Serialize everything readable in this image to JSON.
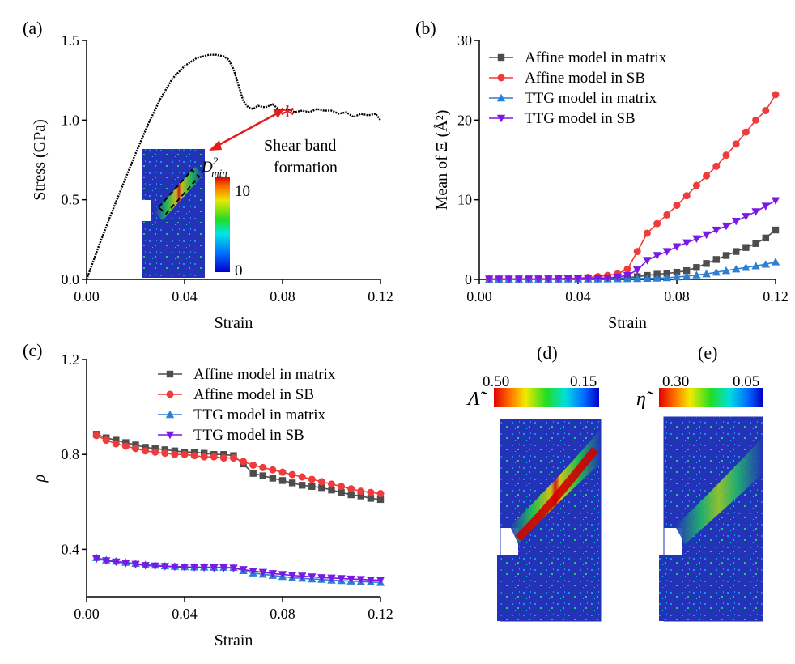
{
  "colors": {
    "affine_matrix": "#4d4d4d",
    "affine_sb": "#ef3b3b",
    "ttg_matrix": "#2d7fd3",
    "ttg_sb": "#7a19e6",
    "stress_curve": "#000000",
    "annotation_arrow": "#e21b1b",
    "sample_background": "#2233b8"
  },
  "panels": {
    "a": {
      "label": "(a)"
    },
    "b": {
      "label": "(b)"
    },
    "c": {
      "label": "(c)"
    },
    "d": {
      "label": "(d)"
    },
    "e": {
      "label": "(e)"
    }
  },
  "annotation": {
    "text_line1": "Shear band",
    "text_line2": "formation",
    "star_glyph": "*"
  },
  "inset_a": {
    "colorbar_title_main": "D",
    "colorbar_title_sup": "2",
    "colorbar_title_sub": "min",
    "colorbar_max": "10",
    "colorbar_min": "0"
  },
  "map_d": {
    "symbol": "Λ̃",
    "left_value": "0.50",
    "right_value": "0.15"
  },
  "map_e": {
    "symbol": "η̃",
    "left_value": "0.30",
    "right_value": "0.05"
  },
  "chart_data": [
    {
      "id": "a",
      "type": "line",
      "xlabel": "Strain",
      "ylabel": "Stress (GPa)",
      "xlim": [
        0.0,
        0.12
      ],
      "ylim": [
        0.0,
        1.5
      ],
      "xticks": [
        "0.00",
        "0.04",
        "0.08",
        "0.12"
      ],
      "yticks": [
        "0.0",
        "0.5",
        "1.0",
        "1.5"
      ],
      "xtick_values": [
        0.0,
        0.04,
        0.08,
        0.12
      ],
      "ytick_values": [
        0.0,
        0.5,
        1.0,
        1.5
      ],
      "series": [
        {
          "color": "#000000",
          "x": [
            0.0,
            0.005,
            0.01,
            0.015,
            0.02,
            0.025,
            0.03,
            0.035,
            0.04,
            0.045,
            0.05,
            0.053,
            0.056,
            0.058,
            0.06,
            0.062,
            0.064,
            0.066,
            0.068,
            0.07,
            0.073,
            0.076,
            0.079,
            0.082,
            0.085,
            0.088,
            0.091,
            0.094,
            0.097,
            0.1,
            0.103,
            0.106,
            0.109,
            0.112,
            0.115,
            0.118,
            0.12
          ],
          "y": [
            0.0,
            0.21,
            0.41,
            0.6,
            0.79,
            0.97,
            1.13,
            1.26,
            1.34,
            1.39,
            1.41,
            1.41,
            1.4,
            1.38,
            1.32,
            1.22,
            1.12,
            1.08,
            1.07,
            1.09,
            1.08,
            1.1,
            1.06,
            1.07,
            1.05,
            1.06,
            1.05,
            1.07,
            1.06,
            1.06,
            1.04,
            1.05,
            1.02,
            1.04,
            1.03,
            1.04,
            1.0
          ]
        }
      ],
      "annotation_point": {
        "x": 0.082,
        "y": 1.07
      }
    },
    {
      "id": "b",
      "type": "line",
      "xlabel": "Strain",
      "ylabel": "Mean of Ξ (Å²)",
      "xlim": [
        0.0,
        0.12
      ],
      "ylim": [
        0,
        30
      ],
      "xticks": [
        "0.00",
        "0.04",
        "0.08",
        "0.12"
      ],
      "yticks": [
        "0",
        "10",
        "20",
        "30"
      ],
      "xtick_values": [
        0.0,
        0.04,
        0.08,
        0.12
      ],
      "ytick_values": [
        0,
        10,
        20,
        30
      ],
      "legend_position": "top-left",
      "x": [
        0.004,
        0.008,
        0.012,
        0.016,
        0.02,
        0.024,
        0.028,
        0.032,
        0.036,
        0.04,
        0.044,
        0.048,
        0.052,
        0.056,
        0.06,
        0.064,
        0.068,
        0.072,
        0.076,
        0.08,
        0.084,
        0.088,
        0.092,
        0.096,
        0.1,
        0.104,
        0.108,
        0.112,
        0.116,
        0.12
      ],
      "series": [
        {
          "name": "Affine model in matrix",
          "marker": "square",
          "color": "#4d4d4d",
          "values": [
            0.05,
            0.05,
            0.05,
            0.05,
            0.05,
            0.05,
            0.05,
            0.06,
            0.06,
            0.07,
            0.08,
            0.1,
            0.12,
            0.15,
            0.2,
            0.35,
            0.5,
            0.65,
            0.75,
            0.9,
            1.1,
            1.5,
            2.0,
            2.5,
            3.0,
            3.5,
            4.0,
            4.5,
            5.2,
            6.2
          ]
        },
        {
          "name": "Affine model in SB",
          "marker": "circle",
          "color": "#ef3b3b",
          "values": [
            0.05,
            0.05,
            0.05,
            0.05,
            0.06,
            0.07,
            0.08,
            0.1,
            0.12,
            0.15,
            0.25,
            0.35,
            0.5,
            0.7,
            1.3,
            3.5,
            5.8,
            7.0,
            8.1,
            9.3,
            10.5,
            11.8,
            13.0,
            14.2,
            15.6,
            17.0,
            18.5,
            20.0,
            21.2,
            23.2
          ]
        },
        {
          "name": "TTG model in matrix",
          "marker": "triangle-up",
          "color": "#2d7fd3",
          "values": [
            0.03,
            0.03,
            0.03,
            0.03,
            0.03,
            0.03,
            0.03,
            0.03,
            0.04,
            0.04,
            0.05,
            0.05,
            0.06,
            0.07,
            0.08,
            0.1,
            0.12,
            0.15,
            0.2,
            0.3,
            0.4,
            0.55,
            0.7,
            0.9,
            1.1,
            1.3,
            1.5,
            1.7,
            1.9,
            2.2
          ]
        },
        {
          "name": "TTG model in SB",
          "marker": "triangle-down",
          "color": "#7a19e6",
          "values": [
            0.04,
            0.04,
            0.04,
            0.04,
            0.05,
            0.05,
            0.06,
            0.07,
            0.08,
            0.1,
            0.12,
            0.15,
            0.2,
            0.3,
            0.5,
            1.2,
            2.4,
            3.0,
            3.5,
            4.1,
            4.6,
            5.1,
            5.6,
            6.2,
            6.7,
            7.3,
            7.9,
            8.5,
            9.2,
            9.9
          ]
        }
      ]
    },
    {
      "id": "c",
      "type": "line",
      "xlabel": "Strain",
      "ylabel": "ρ",
      "xlim": [
        0.0,
        0.12
      ],
      "ylim": [
        0.2,
        1.2
      ],
      "xticks": [
        "0.00",
        "0.04",
        "0.08",
        "0.12"
      ],
      "yticks": [
        "0.4",
        "0.8",
        "1.2"
      ],
      "xtick_values": [
        0.0,
        0.04,
        0.08,
        0.12
      ],
      "ytick_values": [
        0.4,
        0.8,
        1.2
      ],
      "legend_position": "top-right",
      "x": [
        0.004,
        0.008,
        0.012,
        0.016,
        0.02,
        0.024,
        0.028,
        0.032,
        0.036,
        0.04,
        0.044,
        0.048,
        0.052,
        0.056,
        0.06,
        0.064,
        0.068,
        0.072,
        0.076,
        0.08,
        0.084,
        0.088,
        0.092,
        0.096,
        0.1,
        0.104,
        0.108,
        0.112,
        0.116,
        0.12
      ],
      "series": [
        {
          "name": "Affine model in matrix",
          "marker": "square",
          "color": "#4d4d4d",
          "values": [
            0.885,
            0.87,
            0.86,
            0.85,
            0.84,
            0.83,
            0.825,
            0.82,
            0.815,
            0.81,
            0.81,
            0.805,
            0.8,
            0.8,
            0.795,
            0.76,
            0.72,
            0.71,
            0.7,
            0.69,
            0.68,
            0.67,
            0.665,
            0.66,
            0.65,
            0.64,
            0.63,
            0.625,
            0.615,
            0.61
          ]
        },
        {
          "name": "Affine model in SB",
          "marker": "circle",
          "color": "#ef3b3b",
          "values": [
            0.88,
            0.86,
            0.845,
            0.835,
            0.825,
            0.815,
            0.81,
            0.805,
            0.8,
            0.8,
            0.795,
            0.79,
            0.79,
            0.785,
            0.785,
            0.77,
            0.755,
            0.745,
            0.735,
            0.725,
            0.715,
            0.705,
            0.695,
            0.685,
            0.675,
            0.665,
            0.655,
            0.645,
            0.64,
            0.635
          ]
        },
        {
          "name": "TTG model in matrix",
          "marker": "triangle-up",
          "color": "#2d7fd3",
          "values": [
            0.365,
            0.355,
            0.35,
            0.345,
            0.34,
            0.335,
            0.333,
            0.33,
            0.328,
            0.326,
            0.325,
            0.325,
            0.324,
            0.324,
            0.323,
            0.31,
            0.3,
            0.295,
            0.29,
            0.285,
            0.28,
            0.278,
            0.275,
            0.273,
            0.27,
            0.268,
            0.266,
            0.264,
            0.262,
            0.26
          ]
        },
        {
          "name": "TTG model in SB",
          "marker": "triangle-down",
          "color": "#7a19e6",
          "values": [
            0.36,
            0.352,
            0.347,
            0.342,
            0.337,
            0.332,
            0.33,
            0.328,
            0.326,
            0.325,
            0.324,
            0.323,
            0.322,
            0.322,
            0.321,
            0.315,
            0.308,
            0.303,
            0.298,
            0.294,
            0.29,
            0.287,
            0.284,
            0.281,
            0.279,
            0.277,
            0.275,
            0.273,
            0.271,
            0.27
          ]
        }
      ]
    }
  ]
}
